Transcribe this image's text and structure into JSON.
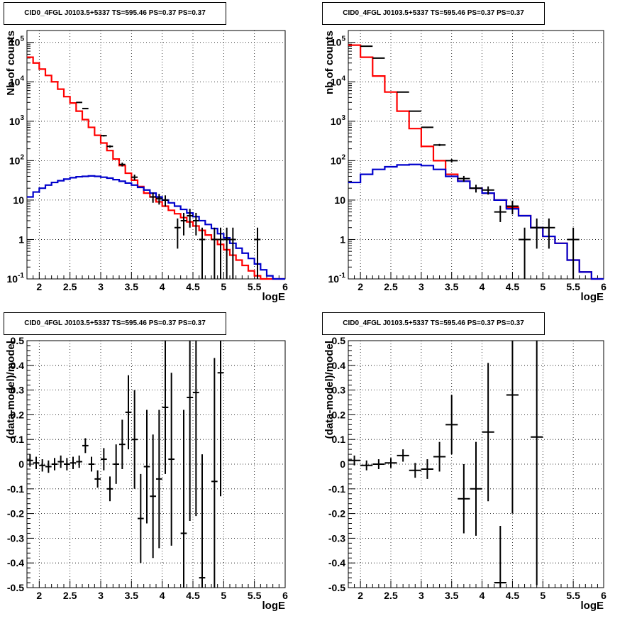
{
  "colors": {
    "model_total": "#ff0000",
    "model_background": "#0000cc",
    "data": "#000000"
  },
  "chart_data": [
    {
      "id": "tl",
      "type": "line",
      "title": "CID0_4FGL J0103.5+5337 TS=595.46 PS=0.37 PS=0.37",
      "xlabel": "logE",
      "ylabel": "Nb of counts",
      "xlim": [
        1.8,
        6.0
      ],
      "ylim": [
        0.1,
        200000
      ],
      "yscale": "log",
      "grid": true,
      "x_ticks": [
        "2",
        "2.5",
        "3",
        "3.5",
        "4",
        "4.5",
        "5",
        "5.5",
        "6"
      ],
      "y_ticks": [
        "10^-1",
        "1",
        "10",
        "10^2",
        "10^3",
        "10^4",
        "10^5"
      ],
      "bin_edges": [
        1.8,
        1.9,
        2.0,
        2.1,
        2.2,
        2.3,
        2.4,
        2.5,
        2.6,
        2.7,
        2.8,
        2.9,
        3.0,
        3.1,
        3.2,
        3.3,
        3.4,
        3.5,
        3.6,
        3.7,
        3.8,
        3.9,
        4.0,
        4.1,
        4.2,
        4.3,
        4.4,
        4.5,
        4.6,
        4.7,
        4.8,
        4.9,
        5.0,
        5.1,
        5.2,
        5.3,
        5.4,
        5.5,
        5.6,
        5.7,
        5.8,
        5.9,
        6.0
      ],
      "series": [
        {
          "color_key": "model_total",
          "values": [
            42000,
            30000,
            21000,
            14500,
            10000,
            6500,
            4200,
            2900,
            1800,
            1100,
            700,
            440,
            280,
            180,
            110,
            75,
            48,
            32,
            22,
            15,
            12,
            9,
            7,
            5.5,
            4.5,
            3.6,
            2.8,
            2.2,
            1.7,
            1.3,
            1.0,
            0.75,
            0.55,
            0.4,
            0.3,
            0.22,
            0.16,
            0.12,
            0.1,
            0.1,
            0.1,
            0.1
          ]
        },
        {
          "color_key": "model_background",
          "values": [
            12,
            16,
            20,
            24,
            28,
            31,
            34,
            37,
            39,
            40,
            41,
            40,
            38,
            36,
            33,
            30,
            27,
            24,
            21,
            18,
            15,
            12,
            10,
            8.5,
            7,
            5.8,
            4.7,
            3.8,
            3.0,
            2.4,
            1.9,
            1.4,
            1.1,
            0.8,
            0.6,
            0.45,
            0.33,
            0.24,
            0.17,
            0.12,
            0.1,
            0.1
          ]
        }
      ],
      "data_points": [
        {
          "x": 2.65,
          "y": 3000
        },
        {
          "x": 2.75,
          "y": 2100
        },
        {
          "x": 3.05,
          "y": 430
        },
        {
          "x": 3.15,
          "y": 230
        },
        {
          "x": 3.35,
          "y": 80
        },
        {
          "x": 3.55,
          "y": 38
        },
        {
          "x": 3.85,
          "y": 12
        },
        {
          "x": 3.95,
          "y": 11
        },
        {
          "x": 4.05,
          "y": 10
        },
        {
          "x": 4.25,
          "y": 2
        },
        {
          "x": 4.35,
          "y": 3
        },
        {
          "x": 4.45,
          "y": 4
        },
        {
          "x": 4.55,
          "y": 3
        },
        {
          "x": 4.65,
          "y": 1
        },
        {
          "x": 4.85,
          "y": 1
        },
        {
          "x": 4.95,
          "y": 1
        },
        {
          "x": 5.05,
          "y": 1
        },
        {
          "x": 5.15,
          "y": 1
        },
        {
          "x": 5.55,
          "y": 1
        }
      ]
    },
    {
      "id": "tr",
      "type": "line",
      "title": "CID0_4FGL J0103.5+5337 TS=595.46 PS=0.37 PS=0.37",
      "xlabel": "logE",
      "ylabel": "nb of counts",
      "xlim": [
        1.8,
        6.0
      ],
      "ylim": [
        0.1,
        200000
      ],
      "yscale": "log",
      "grid": true,
      "x_ticks": [
        "2",
        "2.5",
        "3",
        "3.5",
        "4",
        "4.5",
        "5",
        "5.5",
        "6"
      ],
      "y_ticks": [
        "10^-1",
        "1",
        "10",
        "10^2",
        "10^3",
        "10^4",
        "10^5"
      ],
      "bin_edges": [
        1.8,
        2.0,
        2.2,
        2.4,
        2.6,
        2.8,
        3.0,
        3.2,
        3.4,
        3.6,
        3.8,
        4.0,
        4.2,
        4.4,
        4.6,
        4.8,
        5.0,
        5.2,
        5.4,
        5.6,
        5.8,
        6.0
      ],
      "series": [
        {
          "color_key": "model_total",
          "values": [
            85000,
            42000,
            14000,
            5500,
            1800,
            650,
            230,
            100,
            45,
            30,
            20,
            15,
            10,
            6.5,
            4.0,
            2.0,
            1.2,
            0.8,
            0.3,
            0.15,
            0.1
          ]
        },
        {
          "color_key": "model_background",
          "values": [
            28,
            45,
            60,
            70,
            78,
            80,
            75,
            60,
            40,
            30,
            20,
            15,
            10,
            6,
            4,
            2,
            1.2,
            0.8,
            0.3,
            0.15,
            0.1
          ]
        }
      ],
      "data_points": [
        {
          "x": 2.1,
          "y": 80000
        },
        {
          "x": 2.3,
          "y": 40000
        },
        {
          "x": 2.7,
          "y": 5500
        },
        {
          "x": 2.9,
          "y": 1800
        },
        {
          "x": 3.1,
          "y": 700
        },
        {
          "x": 3.3,
          "y": 250
        },
        {
          "x": 3.5,
          "y": 100
        },
        {
          "x": 3.7,
          "y": 35
        },
        {
          "x": 3.9,
          "y": 20
        },
        {
          "x": 4.1,
          "y": 18
        },
        {
          "x": 4.3,
          "y": 5
        },
        {
          "x": 4.5,
          "y": 7
        },
        {
          "x": 4.7,
          "y": 1
        },
        {
          "x": 4.9,
          "y": 2
        },
        {
          "x": 5.1,
          "y": 2
        },
        {
          "x": 5.5,
          "y": 1
        }
      ]
    },
    {
      "id": "bl",
      "type": "scatter",
      "title": "CID0_4FGL J0103.5+5337 TS=595.46 PS=0.37 PS=0.37",
      "xlabel": "logE",
      "ylabel": "(data-model)/model",
      "xlim": [
        1.8,
        6.0
      ],
      "ylim": [
        -0.5,
        0.5
      ],
      "yscale": "linear",
      "grid": true,
      "x_ticks": [
        "2",
        "2.5",
        "3",
        "3.5",
        "4",
        "4.5",
        "5",
        "5.5",
        "6"
      ],
      "y_ticks": [
        "-0.5",
        "-0.4",
        "-0.3",
        "-0.2",
        "-0.1",
        "0",
        "0.1",
        "0.2",
        "0.3",
        "0.4",
        "0.5"
      ],
      "data_points": [
        {
          "x": 1.85,
          "y": 0.015,
          "err": 0.025
        },
        {
          "x": 1.95,
          "y": 0.005,
          "err": 0.025
        },
        {
          "x": 2.05,
          "y": -0.005,
          "err": 0.025
        },
        {
          "x": 2.15,
          "y": -0.01,
          "err": 0.025
        },
        {
          "x": 2.25,
          "y": 0.0,
          "err": 0.025
        },
        {
          "x": 2.35,
          "y": 0.01,
          "err": 0.025
        },
        {
          "x": 2.45,
          "y": 0.0,
          "err": 0.025
        },
        {
          "x": 2.55,
          "y": 0.005,
          "err": 0.025
        },
        {
          "x": 2.65,
          "y": 0.01,
          "err": 0.025
        },
        {
          "x": 2.75,
          "y": 0.075,
          "err": 0.03
        },
        {
          "x": 2.85,
          "y": 0.0,
          "err": 0.03
        },
        {
          "x": 2.95,
          "y": -0.06,
          "err": 0.035
        },
        {
          "x": 3.05,
          "y": 0.02,
          "err": 0.045
        },
        {
          "x": 3.15,
          "y": -0.1,
          "err": 0.05
        },
        {
          "x": 3.25,
          "y": 0.0,
          "err": 0.08
        },
        {
          "x": 3.35,
          "y": 0.08,
          "err": 0.1
        },
        {
          "x": 3.45,
          "y": 0.21,
          "err": 0.15
        },
        {
          "x": 3.55,
          "y": 0.1,
          "err": 0.2
        },
        {
          "x": 3.65,
          "y": -0.22,
          "err": 0.18
        },
        {
          "x": 3.75,
          "y": -0.01,
          "err": 0.23
        },
        {
          "x": 3.85,
          "y": -0.13,
          "err": 0.25
        },
        {
          "x": 3.95,
          "y": -0.06,
          "err": 0.28
        },
        {
          "x": 4.05,
          "y": 0.23,
          "err": 0.27
        },
        {
          "x": 4.15,
          "y": 0.02,
          "err": 0.35
        },
        {
          "x": 4.35,
          "y": -0.28,
          "err": 0.5
        },
        {
          "x": 4.45,
          "y": 0.27,
          "err": 0.5
        },
        {
          "x": 4.55,
          "y": 0.29,
          "err": 0.5
        },
        {
          "x": 4.65,
          "y": -0.46,
          "err": 0.5
        },
        {
          "x": 4.85,
          "y": -0.07,
          "err": 0.5
        },
        {
          "x": 4.95,
          "y": 0.37,
          "err": 0.5
        }
      ]
    },
    {
      "id": "br",
      "type": "scatter",
      "title": "CID0_4FGL J0103.5+5337 TS=595.46 PS=0.37 PS=0.37",
      "xlabel": "logE",
      "ylabel": "(data-model)/model",
      "xlim": [
        1.8,
        6.0
      ],
      "ylim": [
        -0.5,
        0.5
      ],
      "yscale": "linear",
      "grid": true,
      "x_ticks": [
        "2",
        "2.5",
        "3",
        "3.5",
        "4",
        "4.5",
        "5",
        "5.5",
        "6"
      ],
      "y_ticks": [
        "-0.5",
        "-0.4",
        "-0.3",
        "-0.2",
        "-0.1",
        "0",
        "0.1",
        "0.2",
        "0.3",
        "0.4",
        "0.5"
      ],
      "data_points": [
        {
          "x": 1.9,
          "y": 0.015,
          "err": 0.02
        },
        {
          "x": 2.1,
          "y": -0.005,
          "err": 0.02
        },
        {
          "x": 2.3,
          "y": 0.0,
          "err": 0.02
        },
        {
          "x": 2.5,
          "y": 0.005,
          "err": 0.02
        },
        {
          "x": 2.7,
          "y": 0.035,
          "err": 0.025
        },
        {
          "x": 2.9,
          "y": -0.025,
          "err": 0.03
        },
        {
          "x": 3.1,
          "y": -0.02,
          "err": 0.04
        },
        {
          "x": 3.3,
          "y": 0.03,
          "err": 0.06
        },
        {
          "x": 3.5,
          "y": 0.16,
          "err": 0.12
        },
        {
          "x": 3.7,
          "y": -0.14,
          "err": 0.14
        },
        {
          "x": 3.9,
          "y": -0.1,
          "err": 0.19
        },
        {
          "x": 4.1,
          "y": 0.13,
          "err": 0.28
        },
        {
          "x": 4.3,
          "y": -0.48,
          "err": 0.23
        },
        {
          "x": 4.5,
          "y": 0.28,
          "err": 0.48
        },
        {
          "x": 4.9,
          "y": 0.11,
          "err": 0.6
        }
      ]
    }
  ]
}
